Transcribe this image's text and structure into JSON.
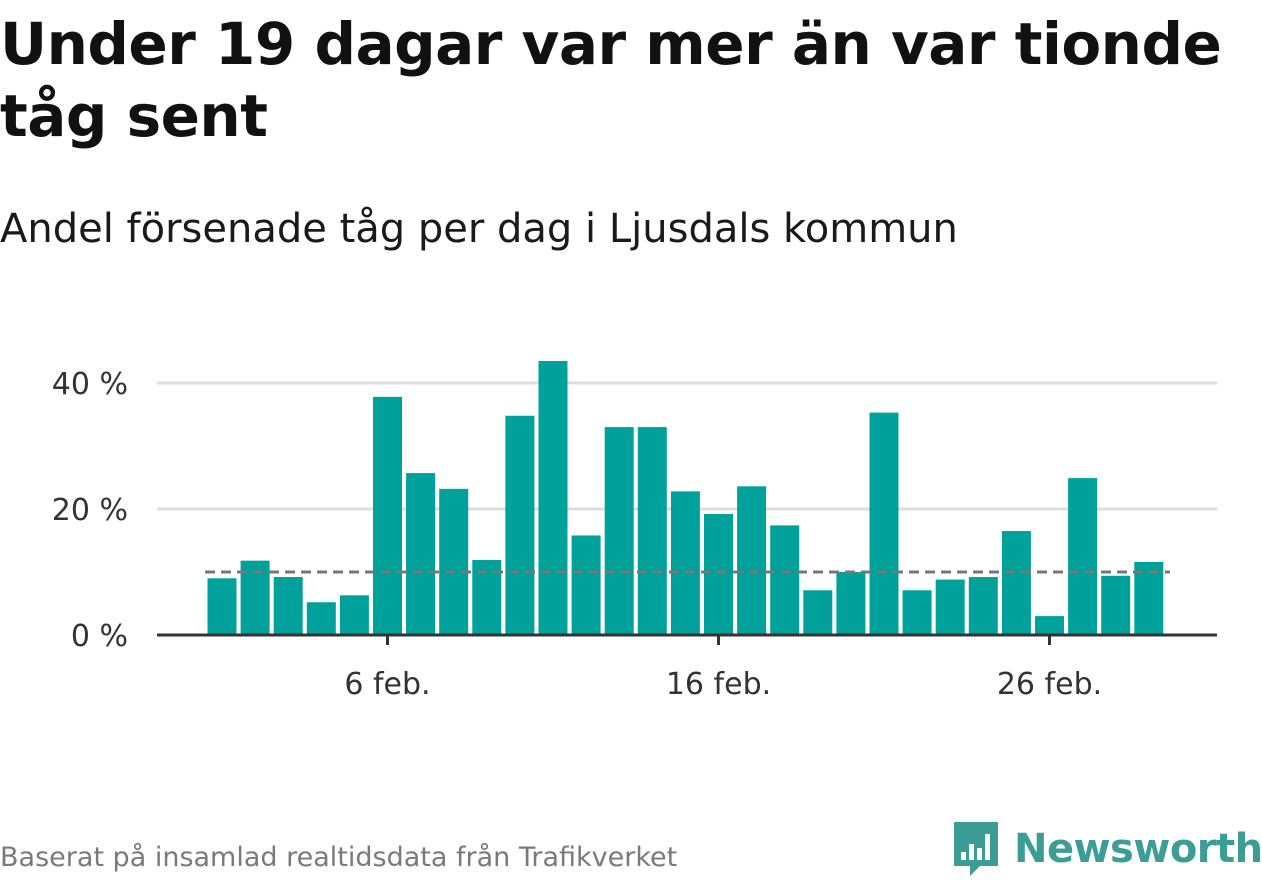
{
  "title": "Under 19 dagar var mer än var tionde tåg sent",
  "subtitle": "Andel försenade tåg per dag i Ljusdals kommun",
  "source": "Baserat på insamlad realtidsdata från Trafikverket",
  "brand": {
    "name": "Newsworthy",
    "color": "#3b9d96"
  },
  "colors": {
    "bar": "#00a19a",
    "reference_line": "#777777",
    "grid": "#dddddd",
    "axis": "#333333"
  },
  "chart_data": {
    "type": "bar",
    "x_start_day": 1,
    "x_ticks": [
      {
        "day": 6,
        "label": "6 feb."
      },
      {
        "day": 16,
        "label": "16 feb."
      },
      {
        "day": 26,
        "label": "26 feb."
      }
    ],
    "values": [
      9,
      11.8,
      9.2,
      5.2,
      6.3,
      37.8,
      25.7,
      23.2,
      11.9,
      34.8,
      43.5,
      15.8,
      33,
      33,
      22.8,
      19.2,
      23.6,
      17.4,
      7.1,
      10,
      35.3,
      7.1,
      8.8,
      9.2,
      16.5,
      3,
      24.9,
      9.4,
      11.6
    ],
    "reference_value": 10,
    "ylim": [
      0,
      45
    ],
    "y_ticks": [
      {
        "value": 0,
        "label": "0 %"
      },
      {
        "value": 20,
        "label": "20 %"
      },
      {
        "value": 40,
        "label": "40 %"
      }
    ],
    "grid": true
  }
}
